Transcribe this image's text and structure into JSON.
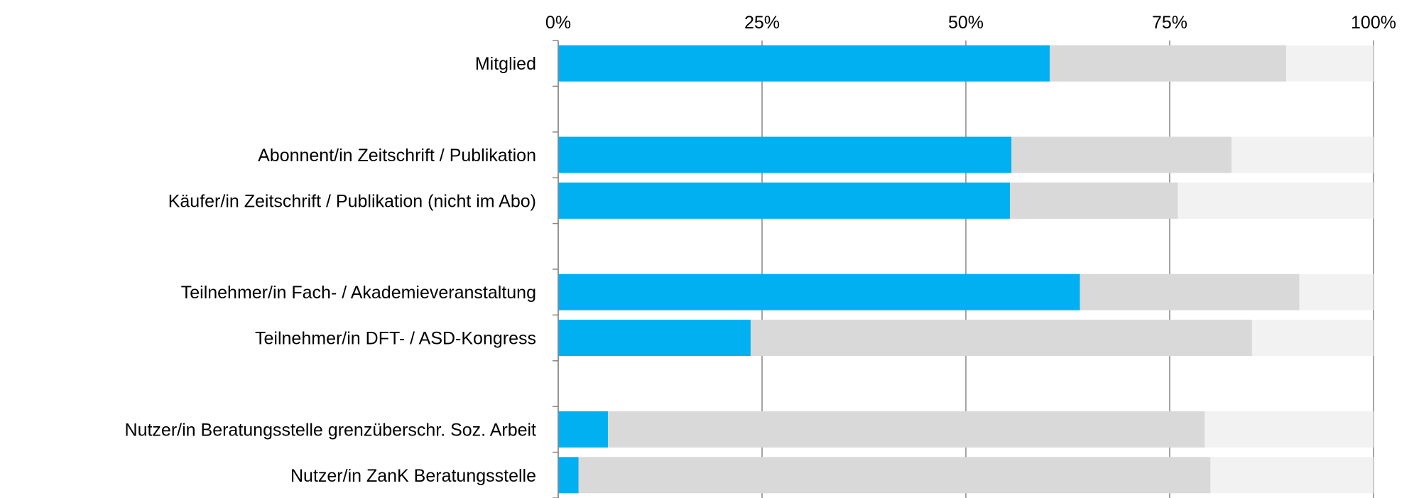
{
  "chart_data": {
    "type": "bar",
    "orientation": "horizontal",
    "stacked": true,
    "title": "",
    "xlabel": "",
    "ylabel": "",
    "xlim": [
      0,
      100
    ],
    "x_ticks": [
      "0%",
      "25%",
      "50%",
      "75%",
      "100%"
    ],
    "x_tick_values": [
      0,
      25,
      50,
      75,
      100
    ],
    "x_axis_position": "top",
    "grid": true,
    "legend": "none",
    "rows": [
      {
        "category": "Mitglied",
        "values": [
          60.3,
          29.0,
          10.7
        ]
      },
      {
        "category": "",
        "values": null
      },
      {
        "category": "Abonnent/in Zeitschrift / Publikation",
        "values": [
          55.6,
          27.0,
          17.4
        ]
      },
      {
        "category": "Käufer/in Zeitschrift / Publikation (nicht im Abo)",
        "values": [
          55.4,
          20.6,
          24.0
        ]
      },
      {
        "category": "",
        "values": null
      },
      {
        "category": "Teilnehmer/in Fach- / Akademieveranstaltung",
        "values": [
          64.0,
          26.9,
          9.1
        ]
      },
      {
        "category": "Teilnehmer/in DFT- / ASD-Kongress",
        "values": [
          23.6,
          61.5,
          14.9
        ]
      },
      {
        "category": "",
        "values": null
      },
      {
        "category": "Nutzer/in Beratungsstelle grenzüberschr. Soz. Arbeit",
        "values": [
          6.1,
          73.2,
          20.7
        ]
      },
      {
        "category": "Nutzer/in ZanK Beratungsstelle",
        "values": [
          2.5,
          77.5,
          20.0
        ]
      }
    ],
    "series_colors": [
      "#00B0F0",
      "#D9D9D9",
      "#F2F2F2"
    ]
  }
}
